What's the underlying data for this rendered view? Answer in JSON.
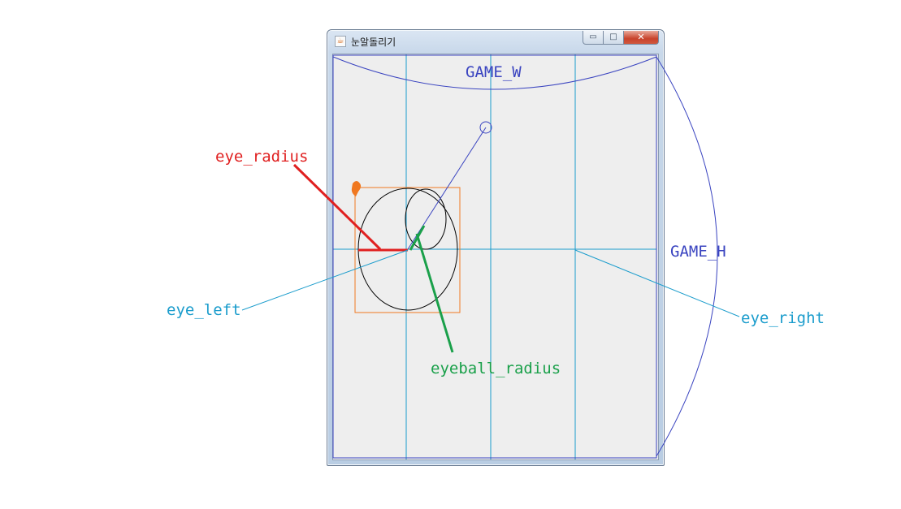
{
  "window": {
    "title": "눈알돌리기",
    "icon": "java-cup-icon",
    "buttons": {
      "minimize": "▭",
      "maximize": "□",
      "close": "✕"
    }
  },
  "annotations": {
    "game_w": "GAME_W",
    "game_h": "GAME_H",
    "eye_radius": "eye_radius",
    "eye_left": "eye_left",
    "eye_right": "eye_right",
    "eyeball_radius": "eyeball_radius"
  },
  "colors": {
    "game_dim": "#3a44c0",
    "eye_radius": "#e02020",
    "eye_pos": "#1a9ccc",
    "eyeball_radius": "#1aa04a",
    "bounding_box": "#f07820",
    "eye_outline": "#000000"
  }
}
